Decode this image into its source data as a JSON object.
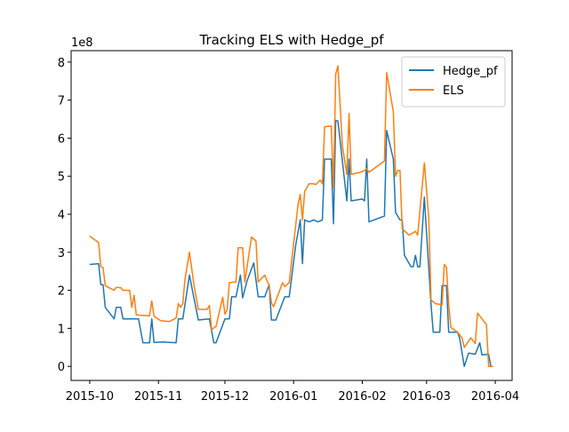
{
  "chart_data": {
    "type": "line",
    "title": "Tracking ELS with Hedge_pf",
    "y_offset_label": "1e8",
    "xlim": [
      -8.4,
      190.6
    ],
    "xticks": [
      {
        "value": 0,
        "label": "2015-10"
      },
      {
        "value": 31,
        "label": "2015-11"
      },
      {
        "value": 61,
        "label": "2015-12"
      },
      {
        "value": 92,
        "label": "2016-01"
      },
      {
        "value": 123,
        "label": "2016-02"
      },
      {
        "value": 152,
        "label": "2016-03"
      },
      {
        "value": 183,
        "label": "2016-04"
      }
    ],
    "ylim": [
      -0.37,
      8.3
    ],
    "yticks": [
      0,
      1,
      2,
      3,
      4,
      5,
      6,
      7,
      8
    ],
    "grid": false,
    "legend": "upper right",
    "series": [
      {
        "name": "Hedge_pf",
        "color": "#1f77b4",
        "x": [
          0,
          4,
          5,
          6,
          7,
          11,
          12,
          14,
          15,
          22,
          24,
          27,
          28,
          29,
          33,
          39,
          40,
          42,
          45,
          47,
          49,
          54,
          56,
          57,
          61,
          63,
          64,
          66,
          68,
          69,
          71,
          74,
          76,
          79,
          81,
          82,
          84,
          88,
          90,
          93,
          95,
          96,
          97,
          99,
          101,
          103,
          105,
          106,
          109,
          110,
          111,
          112,
          114,
          116,
          117,
          118,
          123,
          124,
          125,
          126,
          133,
          134,
          137,
          138,
          140,
          141,
          142,
          145,
          146,
          147,
          148,
          149,
          151,
          154,
          155,
          158,
          159,
          161,
          162,
          166,
          167,
          169,
          171,
          174,
          176,
          177,
          180,
          181,
          182
        ],
        "values": [
          2.68,
          2.7,
          2.15,
          2.15,
          1.55,
          1.25,
          1.55,
          1.55,
          1.25,
          1.25,
          0.62,
          0.62,
          1.25,
          0.63,
          0.64,
          0.62,
          1.25,
          1.25,
          2.4,
          1.8,
          1.22,
          1.25,
          0.62,
          0.62,
          1.25,
          1.25,
          1.83,
          1.83,
          2.4,
          1.8,
          2.25,
          2.72,
          1.83,
          1.83,
          2.15,
          1.22,
          1.22,
          1.83,
          1.83,
          3.2,
          3.85,
          2.7,
          3.85,
          3.8,
          3.85,
          3.8,
          3.85,
          5.45,
          5.45,
          3.75,
          6.47,
          6.45,
          5.4,
          4.35,
          5.45,
          4.35,
          4.4,
          4.35,
          5.45,
          3.8,
          3.95,
          6.2,
          5.45,
          4.05,
          3.85,
          3.85,
          2.92,
          2.62,
          2.62,
          2.92,
          2.62,
          2.62,
          4.45,
          1.63,
          0.9,
          0.9,
          2.12,
          2.12,
          0.9,
          0.9,
          0.72,
          0.0,
          0.35,
          0.32,
          0.62,
          0.3,
          0.32,
          0.0,
          0.0
        ]
      },
      {
        "name": "ELS",
        "color": "#ff7f0e",
        "x": [
          0,
          3,
          4,
          5,
          6,
          7,
          11,
          12,
          14,
          15,
          18,
          19,
          20,
          21,
          27,
          28,
          29,
          32,
          36,
          39,
          40,
          41,
          42,
          43,
          45,
          47,
          49,
          53,
          54,
          55,
          57,
          60,
          61,
          62,
          63,
          66,
          67,
          69,
          70,
          73,
          75,
          76,
          79,
          81,
          82,
          83,
          87,
          88,
          90,
          94,
          95,
          96,
          97,
          99,
          101,
          102,
          104,
          105,
          106,
          109,
          110,
          111,
          112,
          114,
          116,
          117,
          118,
          122,
          124,
          125,
          126,
          133,
          134,
          137,
          138,
          139,
          140,
          141,
          144,
          147,
          148,
          151,
          153,
          154,
          156,
          159,
          160,
          161,
          162,
          163,
          166,
          167,
          168,
          169,
          172,
          174,
          175,
          179,
          180,
          182
        ],
        "values": [
          3.42,
          3.3,
          3.25,
          2.62,
          2.6,
          2.12,
          2.0,
          2.08,
          2.07,
          2.0,
          2.0,
          1.55,
          1.87,
          1.35,
          1.33,
          1.72,
          1.32,
          1.2,
          1.18,
          1.27,
          1.65,
          1.55,
          1.65,
          2.3,
          3.0,
          2.15,
          1.5,
          1.5,
          1.6,
          0.97,
          1.05,
          1.82,
          1.37,
          1.5,
          2.2,
          2.22,
          3.12,
          3.12,
          2.22,
          3.4,
          3.3,
          2.22,
          2.4,
          2.12,
          1.67,
          1.57,
          2.2,
          2.1,
          2.2,
          4.25,
          4.52,
          3.85,
          4.6,
          4.8,
          4.8,
          4.78,
          4.9,
          4.8,
          6.3,
          6.32,
          4.7,
          7.68,
          7.9,
          5.8,
          5.05,
          6.65,
          5.05,
          5.1,
          5.15,
          5.2,
          5.1,
          5.4,
          7.72,
          6.7,
          5.0,
          5.15,
          5.15,
          3.62,
          3.45,
          3.55,
          3.45,
          5.35,
          3.9,
          1.75,
          1.65,
          1.62,
          2.68,
          2.6,
          1.62,
          1.02,
          0.9,
          0.82,
          0.75,
          0.5,
          0.75,
          0.6,
          1.4,
          1.1,
          0.0,
          0.0
        ]
      }
    ]
  }
}
